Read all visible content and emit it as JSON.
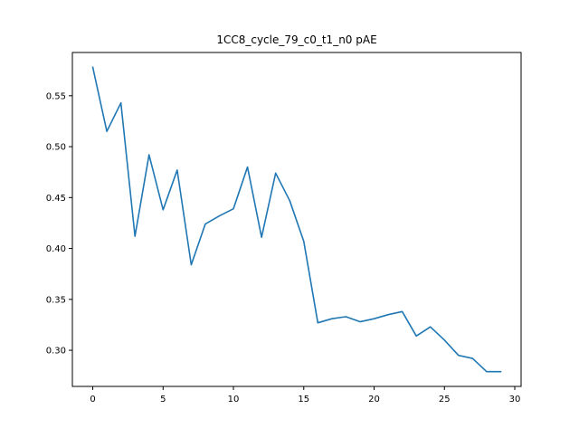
{
  "chart_data": {
    "type": "line",
    "title": "1CC8_cycle_79_c0_t1_n0 pAE",
    "xlabel": "",
    "ylabel": "",
    "xlim": [
      -1.45,
      30.45
    ],
    "ylim": [
      0.2645,
      0.5925
    ],
    "xticks": [
      0,
      5,
      10,
      15,
      20,
      25,
      30
    ],
    "yticks": [
      0.3,
      0.35,
      0.4,
      0.45,
      0.5,
      0.55
    ],
    "xtick_labels": [
      "0",
      "5",
      "10",
      "15",
      "20",
      "25",
      "30"
    ],
    "ytick_labels": [
      "0.30",
      "0.35",
      "0.40",
      "0.45",
      "0.50",
      "0.55"
    ],
    "grid": false,
    "series": [
      {
        "color": "#1f77b4",
        "x": [
          0,
          1,
          2,
          3,
          4,
          5,
          6,
          7,
          8,
          9,
          10,
          11,
          12,
          13,
          14,
          15,
          16,
          17,
          18,
          19,
          20,
          21,
          22,
          23,
          24,
          25,
          26,
          27,
          28,
          29
        ],
        "y": [
          0.578,
          0.515,
          0.543,
          0.412,
          0.492,
          0.438,
          0.477,
          0.384,
          0.424,
          0.432,
          0.439,
          0.48,
          0.411,
          0.474,
          0.447,
          0.407,
          0.327,
          0.331,
          0.333,
          0.328,
          0.331,
          0.335,
          0.338,
          0.314,
          0.323,
          0.31,
          0.295,
          0.292,
          0.279,
          0.279
        ]
      }
    ]
  }
}
